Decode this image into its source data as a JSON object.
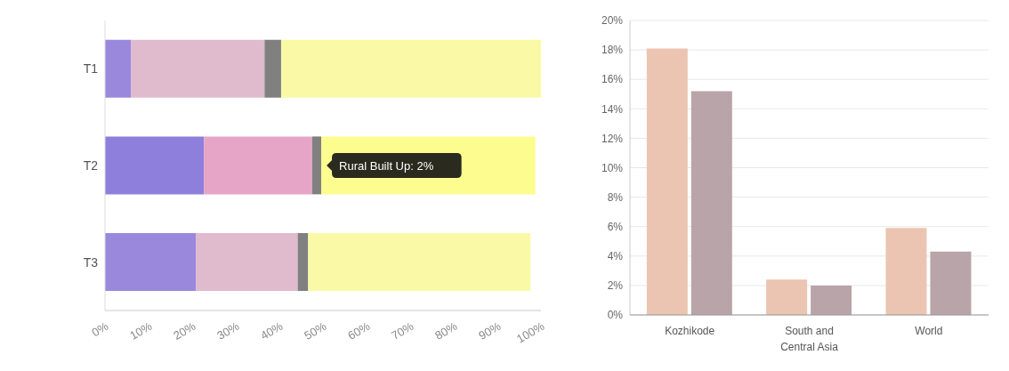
{
  "chart_data": [
    {
      "type": "bar",
      "orientation": "horizontal",
      "stacked": true,
      "categories": [
        "T1",
        "T2",
        "T3"
      ],
      "series": [
        {
          "colors": [
            "#9a88dc",
            "#8f7fdd",
            "#9a88dc"
          ],
          "values": [
            6.0,
            22.7,
            20.9
          ]
        },
        {
          "colors": [
            "#e0bacd",
            "#e6a5c7",
            "#e0bacd"
          ],
          "values": [
            30.6,
            24.8,
            23.3
          ]
        },
        {
          "colors": [
            "#808080",
            "#808080",
            "#808080"
          ],
          "values": [
            3.8,
            2.1,
            2.4
          ]
        },
        {
          "colors": [
            "#fafaa6",
            "#fdfc8f",
            "#fafaa6"
          ],
          "values": [
            59.6,
            49.1,
            51.0
          ]
        }
      ],
      "xlim": [
        0,
        100
      ],
      "xticks": [
        {
          "value": 0,
          "label": "0%"
        },
        {
          "value": 10,
          "label": "10%"
        },
        {
          "value": 20,
          "label": "20%"
        },
        {
          "value": 30,
          "label": "30%"
        },
        {
          "value": 40,
          "label": "40%"
        },
        {
          "value": 50,
          "label": "50%"
        },
        {
          "value": 60,
          "label": "60%"
        },
        {
          "value": 70,
          "label": "70%"
        },
        {
          "value": 80,
          "label": "80%"
        },
        {
          "value": 90,
          "label": "90%"
        },
        {
          "value": 100,
          "label": "100%"
        }
      ],
      "grid": false,
      "annotations": [
        {
          "text": "Rural Built Up: 2%",
          "x": 49.6,
          "y": "T2"
        }
      ]
    },
    {
      "type": "bar",
      "categories": [
        "Kozhikode",
        "South and Central Asia",
        "World"
      ],
      "series": [
        {
          "color": "#ebc4b2",
          "values": [
            18.1,
            2.4,
            5.9
          ]
        },
        {
          "color": "#b8a4a9",
          "values": [
            15.2,
            2.0,
            4.3
          ]
        }
      ],
      "ylim": [
        0,
        20
      ],
      "yticks": [
        {
          "value": 0,
          "label": "0%"
        },
        {
          "value": 2,
          "label": "2%"
        },
        {
          "value": 4,
          "label": "4%"
        },
        {
          "value": 6,
          "label": "6%"
        },
        {
          "value": 8,
          "label": "8%"
        },
        {
          "value": 10,
          "label": "10%"
        },
        {
          "value": 12,
          "label": "12%"
        },
        {
          "value": 14,
          "label": "14%"
        },
        {
          "value": 16,
          "label": "16%"
        },
        {
          "value": 18,
          "label": "18%"
        },
        {
          "value": 20,
          "label": "20%"
        }
      ],
      "grid": "y"
    }
  ]
}
